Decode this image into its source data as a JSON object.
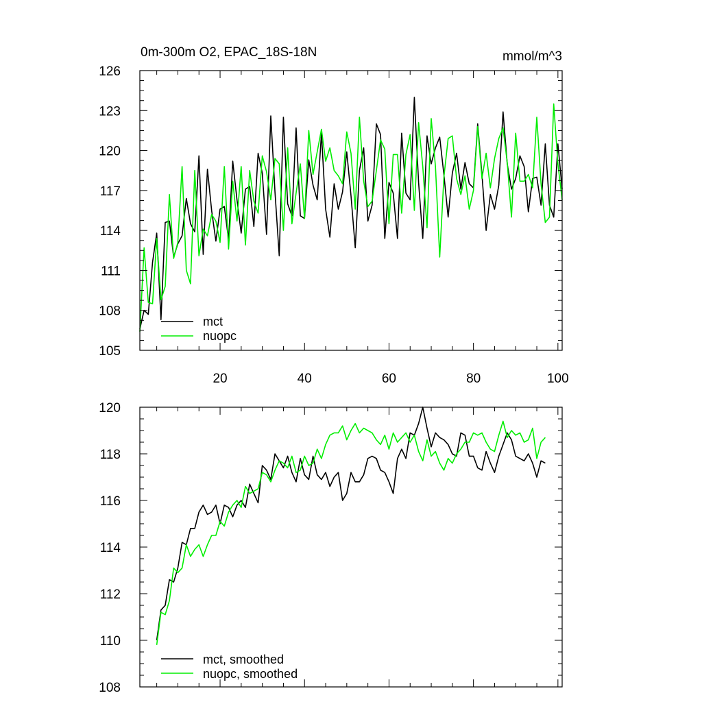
{
  "chart_data": [
    {
      "type": "line",
      "title_left": "0m-300m O2, EPAC_18S-18N",
      "title_right": "mmol/m^3",
      "xlabel": "",
      "ylabel": "",
      "xlim": [
        1,
        101
      ],
      "ylim": [
        105,
        126
      ],
      "xticks": [
        20,
        40,
        60,
        80,
        100
      ],
      "yticks": [
        105,
        108,
        111,
        114,
        117,
        120,
        123,
        126
      ],
      "legend_position": "bottom-left",
      "x": [
        1,
        2,
        3,
        4,
        5,
        6,
        7,
        8,
        9,
        10,
        11,
        12,
        13,
        14,
        15,
        16,
        17,
        18,
        19,
        20,
        21,
        22,
        23,
        24,
        25,
        26,
        27,
        28,
        29,
        30,
        31,
        32,
        33,
        34,
        35,
        36,
        37,
        38,
        39,
        40,
        41,
        42,
        43,
        44,
        45,
        46,
        47,
        48,
        49,
        50,
        51,
        52,
        53,
        54,
        55,
        56,
        57,
        58,
        59,
        60,
        61,
        62,
        63,
        64,
        65,
        66,
        67,
        68,
        69,
        70,
        71,
        72,
        73,
        74,
        75,
        76,
        77,
        78,
        79,
        80,
        81,
        82,
        83,
        84,
        85,
        86,
        87,
        88,
        89,
        90,
        91,
        92,
        93,
        94,
        95,
        96,
        97,
        98,
        99,
        100,
        101
      ],
      "series": [
        {
          "name": "mct",
          "color": "#000000",
          "values": [
            106.6,
            108.0,
            107.7,
            111.6,
            113.8,
            107.3,
            114.6,
            114.7,
            112.0,
            113.0,
            113.6,
            116.4,
            114.5,
            113.9,
            119.6,
            112.2,
            118.6,
            115.5,
            113.2,
            115.6,
            115.8,
            113.3,
            119.2,
            116.3,
            113.8,
            117.1,
            117.3,
            114.3,
            119.8,
            118.3,
            113.7,
            122.6,
            116.9,
            112.1,
            122.5,
            116.0,
            115.1,
            121.7,
            115.1,
            114.9,
            119.3,
            117.4,
            116.3,
            121.3,
            115.6,
            113.5,
            117.5,
            115.6,
            116.9,
            119.9,
            116.6,
            112.7,
            118.5,
            120.2,
            114.7,
            115.9,
            122.0,
            121.2,
            113.4,
            117.6,
            116.8,
            113.4,
            121.3,
            116.8,
            116.3,
            124.0,
            117.6,
            113.4,
            121.1,
            119.0,
            120.2,
            121.0,
            118.2,
            115.0,
            118.3,
            119.8,
            117.1,
            119.1,
            117.5,
            117.2,
            122.0,
            118.2,
            114.0,
            116.7,
            115.6,
            117.4,
            122.9,
            119.0,
            117.1,
            117.9,
            119.6,
            118.8,
            115.4,
            117.9,
            118.0,
            115.9,
            120.5,
            115.9,
            115.0,
            120.5,
            117.1
          ]
        },
        {
          "name": "nuopc",
          "color": "#00ee00",
          "values": [
            106.4,
            112.7,
            108.6,
            108.5,
            113.4,
            108.8,
            109.8,
            116.7,
            111.9,
            113.1,
            118.8,
            111.0,
            110.0,
            118.5,
            112.1,
            114.1,
            113.6,
            115.2,
            114.7,
            113.1,
            118.8,
            112.6,
            117.7,
            114.7,
            118.8,
            112.9,
            118.5,
            116.2,
            115.3,
            119.6,
            118.4,
            116.3,
            119.4,
            119.0,
            114.0,
            120.2,
            114.5,
            116.8,
            119.0,
            114.9,
            121.5,
            118.2,
            119.9,
            121.6,
            119.2,
            120.2,
            118.5,
            118.1,
            117.5,
            121.4,
            119.8,
            115.6,
            122.5,
            117.7,
            115.8,
            116.2,
            118.5,
            120.8,
            120.1,
            114.5,
            119.7,
            119.7,
            115.3,
            119.7,
            121.2,
            115.5,
            122.1,
            118.8,
            114.2,
            122.4,
            118.8,
            112.0,
            118.0,
            120.9,
            121.1,
            117.9,
            116.7,
            118.1,
            115.6,
            117.0,
            121.8,
            117.9,
            119.8,
            117.2,
            119.4,
            120.9,
            121.7,
            119.1,
            115.0,
            121.3,
            117.7,
            117.7,
            118.2,
            117.2,
            122.5,
            117.5,
            114.6,
            115.0,
            123.5,
            119.0,
            116.3
          ]
        }
      ]
    },
    {
      "type": "line",
      "title": "",
      "xlabel": "",
      "ylabel": "",
      "xlim": [
        1,
        101
      ],
      "ylim": [
        108,
        120
      ],
      "xticks": [
        20,
        40,
        60,
        80,
        100
      ],
      "yticks": [
        108,
        110,
        112,
        114,
        116,
        118,
        120
      ],
      "legend_position": "bottom-left",
      "x": [
        5,
        6,
        7,
        8,
        9,
        10,
        11,
        12,
        13,
        14,
        15,
        16,
        17,
        18,
        19,
        20,
        21,
        22,
        23,
        24,
        25,
        26,
        27,
        28,
        29,
        30,
        31,
        32,
        33,
        34,
        35,
        36,
        37,
        38,
        39,
        40,
        41,
        42,
        43,
        44,
        45,
        46,
        47,
        48,
        49,
        50,
        51,
        52,
        53,
        54,
        55,
        56,
        57,
        58,
        59,
        60,
        61,
        62,
        63,
        64,
        65,
        66,
        67,
        68,
        69,
        70,
        71,
        72,
        73,
        74,
        75,
        76,
        77,
        78,
        79,
        80,
        81,
        82,
        83,
        84,
        85,
        86,
        87,
        88,
        89,
        90,
        91,
        92,
        93,
        94,
        95,
        96,
        97
      ],
      "series": [
        {
          "name": "mct, smoothed",
          "color": "#000000",
          "values": [
            110.0,
            111.3,
            111.5,
            112.6,
            112.5,
            113.1,
            114.2,
            114.1,
            114.8,
            114.8,
            115.5,
            115.8,
            115.4,
            115.5,
            115.8,
            115.0,
            115.8,
            115.7,
            115.3,
            115.8,
            116.0,
            115.7,
            116.7,
            116.3,
            115.9,
            117.5,
            117.3,
            116.9,
            118.0,
            117.7,
            117.4,
            117.9,
            117.2,
            116.8,
            117.8,
            117.1,
            116.9,
            117.9,
            117.1,
            116.9,
            117.2,
            116.6,
            117.0,
            117.2,
            116.0,
            116.3,
            117.2,
            116.8,
            116.8,
            117.1,
            117.8,
            117.9,
            117.8,
            117.3,
            117.2,
            116.8,
            116.3,
            117.8,
            118.2,
            117.8,
            118.9,
            118.8,
            119.3,
            120.0,
            119.1,
            118.3,
            118.9,
            118.7,
            118.6,
            118.4,
            118.0,
            117.9,
            118.9,
            118.8,
            117.9,
            117.9,
            117.4,
            117.3,
            118.1,
            117.6,
            117.2,
            117.9,
            118.4,
            118.9,
            118.6,
            117.9,
            117.8,
            117.7,
            118.0,
            117.6,
            117.0,
            117.7,
            117.6
          ]
        },
        {
          "name": "nuopc, smoothed",
          "color": "#00ee00",
          "values": [
            109.8,
            111.2,
            111.1,
            111.7,
            113.1,
            112.9,
            113.1,
            114.1,
            113.6,
            113.9,
            114.1,
            113.6,
            114.1,
            114.5,
            114.5,
            115.1,
            114.9,
            115.5,
            115.8,
            116.0,
            115.7,
            116.6,
            116.3,
            116.4,
            116.5,
            117.2,
            117.1,
            116.8,
            117.3,
            117.7,
            117.6,
            117.4,
            117.9,
            117.2,
            117.3,
            117.9,
            117.5,
            117.6,
            118.2,
            117.8,
            118.4,
            118.8,
            118.9,
            118.9,
            119.2,
            118.6,
            119.0,
            119.3,
            118.9,
            119.1,
            119.0,
            118.9,
            118.6,
            118.4,
            118.8,
            118.2,
            118.9,
            118.5,
            118.7,
            118.9,
            118.5,
            118.8,
            118.1,
            117.7,
            118.6,
            117.9,
            118.1,
            117.6,
            117.3,
            117.8,
            117.6,
            118.0,
            118.2,
            118.5,
            118.5,
            118.9,
            118.8,
            118.9,
            118.5,
            118.2,
            118.1,
            118.8,
            119.4,
            118.7,
            119.0,
            118.8,
            118.9,
            118.5,
            118.6,
            119.1,
            117.8,
            118.5,
            118.7
          ]
        }
      ]
    }
  ]
}
